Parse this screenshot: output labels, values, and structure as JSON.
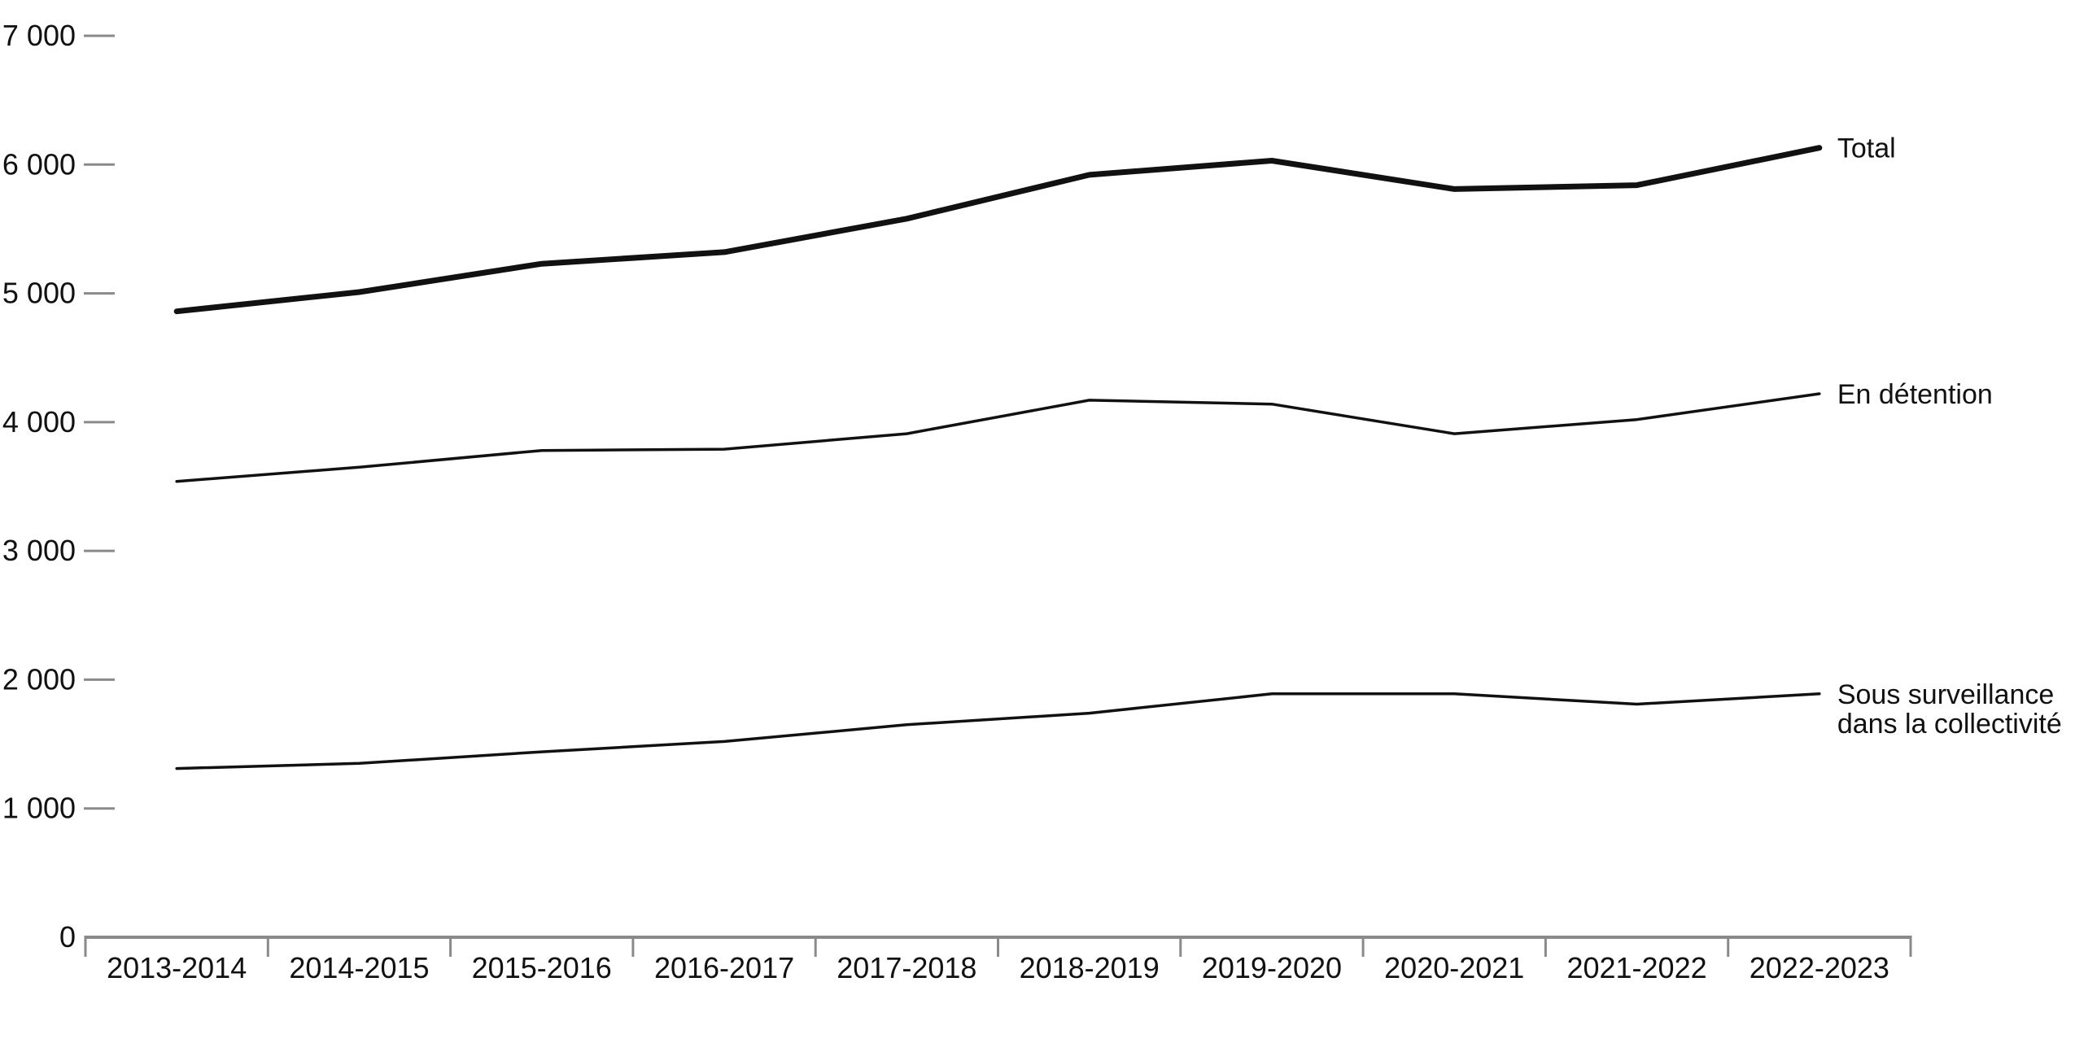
{
  "chart_data": {
    "type": "line",
    "title": "",
    "xlabel": "",
    "ylabel": "",
    "categories": [
      "2013-2014",
      "2014-2015",
      "2015-2016",
      "2016-2017",
      "2017-2018",
      "2018-2019",
      "2019-2020",
      "2020-2021",
      "2021-2022",
      "2022-2023"
    ],
    "ylim": [
      0,
      7000
    ],
    "yticks": [
      0,
      1000,
      2000,
      3000,
      4000,
      5000,
      6000,
      7000
    ],
    "ytick_labels": [
      "0",
      "1 000",
      "2 000",
      "3 000",
      "4 000",
      "5 000",
      "6 000",
      "7 000"
    ],
    "grid": false,
    "legend": "direct labels at right end of lines",
    "series": [
      {
        "key": "total",
        "name": "Total",
        "label_lines": [
          "Total"
        ],
        "color": "#111111",
        "emphasis": "bold",
        "values": [
          4860,
          5010,
          5230,
          5320,
          5580,
          5920,
          6030,
          5810,
          5840,
          6130
        ]
      },
      {
        "key": "detention",
        "name": "En détention",
        "label_lines": [
          "En détention"
        ],
        "color": "#111111",
        "emphasis": "normal",
        "values": [
          3540,
          3650,
          3780,
          3790,
          3910,
          4170,
          4140,
          3910,
          4020,
          4220
        ]
      },
      {
        "key": "community",
        "name": "Sous surveillance dans la collectivité",
        "label_lines": [
          "Sous surveillance",
          "dans la collectivité"
        ],
        "color": "#111111",
        "emphasis": "normal",
        "values": [
          1310,
          1350,
          1440,
          1520,
          1650,
          1740,
          1890,
          1890,
          1810,
          1890
        ]
      }
    ]
  },
  "colors": {
    "axis": "#8a8a8a",
    "text": "#111111",
    "background": "#ffffff"
  }
}
